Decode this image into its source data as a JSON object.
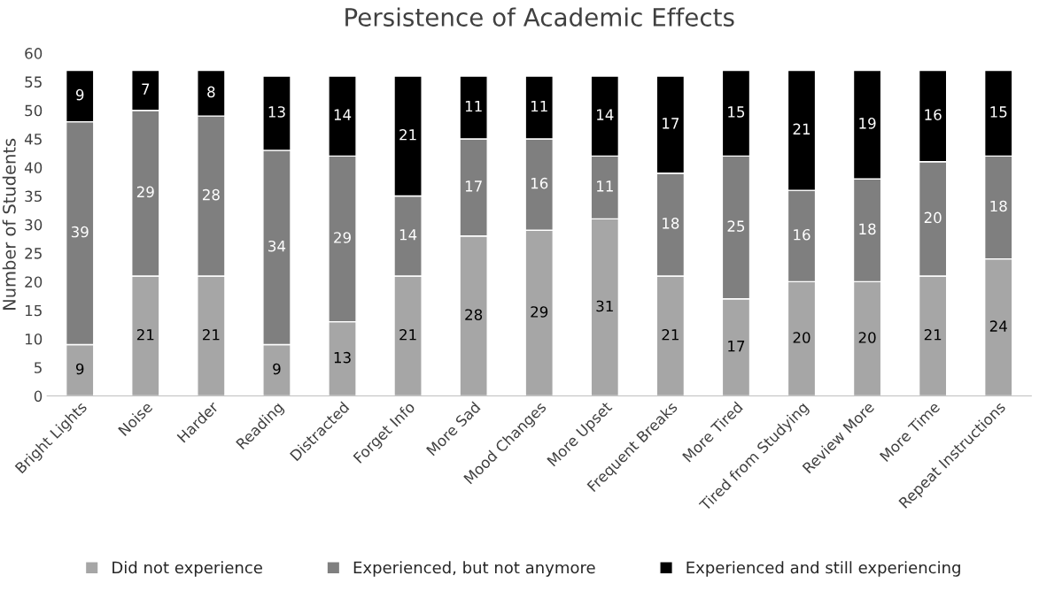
{
  "chart_data": {
    "type": "bar",
    "title": "Persistence of Academic Effects",
    "ylabel": "Number of Students",
    "stacked": true,
    "data_labels": true,
    "legend": "bottom",
    "grid": false,
    "categories": [
      "Bright Lights",
      "Noise",
      "Harder",
      "Reading",
      "Distracted",
      "Forget Info",
      "More Sad",
      "Mood Changes",
      "More Upset",
      "Frequent Breaks",
      "More Tired",
      "Tired from Studying",
      "Review More",
      "More Time",
      "Repeat Instructions"
    ],
    "series": [
      {
        "name": "Did not experience",
        "color": "#a6a6a6",
        "values": [
          9,
          21,
          21,
          9,
          13,
          21,
          28,
          29,
          31,
          21,
          17,
          20,
          20,
          21,
          24
        ]
      },
      {
        "name": "Experienced, but not anymore",
        "color": "#7f7f7f",
        "values": [
          39,
          29,
          28,
          34,
          29,
          14,
          17,
          16,
          11,
          18,
          25,
          16,
          18,
          20,
          18
        ]
      },
      {
        "name": "Experienced and still experiencing",
        "color": "#000000",
        "values": [
          9,
          7,
          8,
          13,
          14,
          21,
          11,
          11,
          14,
          17,
          15,
          21,
          19,
          16,
          15
        ]
      }
    ],
    "ylim": [
      0,
      60
    ],
    "yticks": [
      0,
      5,
      10,
      15,
      20,
      25,
      30,
      35,
      40,
      45,
      50,
      55,
      60
    ]
  }
}
